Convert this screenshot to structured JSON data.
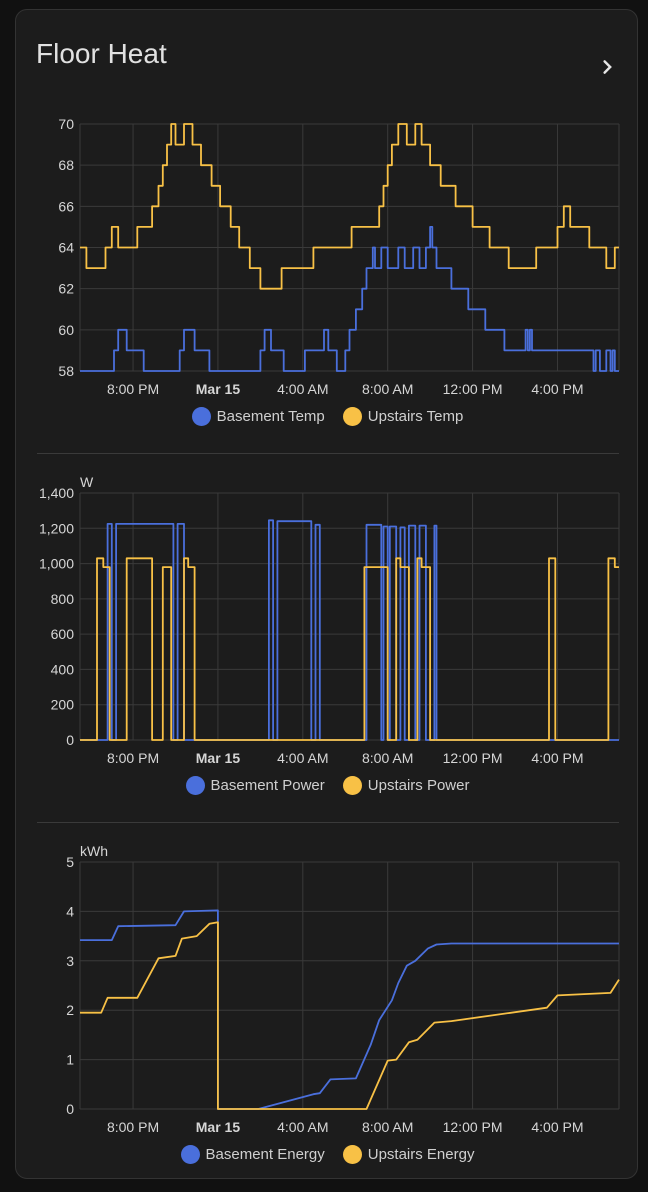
{
  "card": {
    "title": "Floor Heat",
    "open_icon": "chevron-right-icon"
  },
  "colors": {
    "blue": "#4a6fdc",
    "yellow": "#f8c146",
    "grid": "#3a3a3a",
    "tick": "#d6d6d6"
  },
  "x_ticks": [
    "8:00 PM",
    "Mar 15",
    "4:00 AM",
    "8:00 AM",
    "12:00 PM",
    "4:00 PM"
  ],
  "charts": [
    {
      "unit": "",
      "y_ticks": [
        "58",
        "60",
        "62",
        "64",
        "66",
        "68",
        "70"
      ],
      "legend": [
        "Basement Temp",
        "Upstairs Temp"
      ]
    },
    {
      "unit": "W",
      "y_ticks": [
        "0",
        "200",
        "400",
        "600",
        "800",
        "1,000",
        "1,200",
        "1,400"
      ],
      "legend": [
        "Basement Power",
        "Upstairs Power"
      ]
    },
    {
      "unit": "kWh",
      "y_ticks": [
        "0",
        "1",
        "2",
        "3",
        "4",
        "5"
      ],
      "legend": [
        "Basement Energy",
        "Upstairs Energy"
      ]
    }
  ],
  "chart_data": [
    {
      "type": "line",
      "x_unit": "hours",
      "ylim": [
        58,
        70
      ],
      "series": [
        {
          "name": "Basement Temp",
          "color": "#4a6fdc",
          "x": [
            17.5,
            19.1,
            19.1,
            19.3,
            19.3,
            19.7,
            19.7,
            20.5,
            20.5,
            22.2,
            22.2,
            22.4,
            22.4,
            22.9,
            22.9,
            23.6,
            23.6,
            23.8,
            23.8,
            26.0,
            26.0,
            26.2,
            26.2,
            26.5,
            26.5,
            27.1,
            27.1,
            28.1,
            28.1,
            29.0,
            29.0,
            29.2,
            29.2,
            29.6,
            29.6,
            30.0,
            30.0,
            30.2,
            30.2,
            30.5,
            30.5,
            30.8,
            30.8,
            31.0,
            31.0,
            31.3,
            31.3,
            31.4,
            31.4,
            31.7,
            31.7,
            32.0,
            32.0,
            32.5,
            32.5,
            32.8,
            32.8,
            33.2,
            33.2,
            33.5,
            33.5,
            33.8,
            33.8,
            34.0,
            34.0,
            34.1,
            34.1,
            34.3,
            34.3,
            35.0,
            35.0,
            35.8,
            35.8,
            36.6,
            36.6,
            37.5,
            37.5,
            38.5,
            38.5,
            38.6,
            38.6,
            38.7,
            38.7,
            38.8,
            38.8,
            41.7,
            41.7,
            41.8,
            41.8,
            42.0,
            42.0,
            42.3,
            42.3,
            42.5,
            42.5,
            42.6,
            42.6,
            42.7,
            42.7,
            42.9
          ],
          "y": [
            58,
            58,
            59,
            59,
            60,
            60,
            59,
            59,
            58,
            58,
            59,
            59,
            60,
            60,
            59,
            59,
            58,
            58,
            58,
            58,
            59,
            59,
            60,
            60,
            59,
            59,
            58,
            58,
            59,
            59,
            60,
            60,
            59,
            59,
            58,
            58,
            59,
            59,
            60,
            60,
            61,
            61,
            62,
            62,
            63,
            63,
            64,
            64,
            63,
            63,
            64,
            64,
            63,
            63,
            64,
            64,
            63,
            63,
            64,
            64,
            63,
            63,
            64,
            64,
            65,
            65,
            64,
            64,
            63,
            63,
            62,
            62,
            61,
            61,
            60,
            60,
            59,
            59,
            60,
            60,
            59,
            59,
            60,
            60,
            59,
            59,
            58,
            58,
            59,
            59,
            58,
            58,
            59,
            59,
            58,
            58,
            59,
            59,
            58,
            58
          ]
        },
        {
          "name": "Upstairs Temp",
          "color": "#f8c146",
          "x": [
            17.5,
            17.8,
            17.8,
            18.7,
            18.7,
            19.0,
            19.0,
            19.3,
            19.3,
            20.2,
            20.2,
            20.9,
            20.9,
            21.2,
            21.2,
            21.4,
            21.4,
            21.6,
            21.6,
            21.8,
            21.8,
            22.0,
            22.0,
            22.4,
            22.4,
            22.8,
            22.8,
            23.2,
            23.2,
            23.7,
            23.7,
            24.1,
            24.1,
            24.6,
            24.6,
            25.0,
            25.0,
            25.5,
            25.5,
            26.0,
            26.0,
            27.0,
            27.0,
            28.5,
            28.5,
            30.3,
            30.3,
            31.6,
            31.6,
            31.8,
            31.8,
            32.0,
            32.0,
            32.2,
            32.2,
            32.5,
            32.5,
            32.9,
            32.9,
            33.3,
            33.3,
            33.6,
            33.6,
            34.0,
            34.0,
            34.5,
            34.5,
            35.2,
            35.2,
            36.0,
            36.0,
            36.8,
            36.8,
            37.7,
            37.7,
            39.0,
            39.0,
            40.0,
            40.0,
            40.3,
            40.3,
            40.6,
            40.6,
            41.5,
            41.5,
            42.3,
            42.3,
            42.7,
            42.7,
            42.9
          ],
          "y": [
            64,
            64,
            63,
            63,
            64,
            64,
            65,
            65,
            64,
            64,
            65,
            65,
            66,
            66,
            67,
            67,
            68,
            68,
            69,
            69,
            70,
            70,
            69,
            69,
            70,
            70,
            69,
            69,
            68,
            68,
            67,
            67,
            66,
            66,
            65,
            65,
            64,
            64,
            63,
            63,
            62,
            62,
            63,
            63,
            64,
            64,
            65,
            65,
            66,
            66,
            67,
            67,
            68,
            68,
            69,
            69,
            70,
            70,
            69,
            69,
            70,
            70,
            69,
            69,
            68,
            68,
            67,
            67,
            66,
            66,
            65,
            65,
            64,
            64,
            63,
            63,
            64,
            64,
            65,
            65,
            66,
            66,
            65,
            65,
            64,
            64,
            63,
            63,
            64,
            64
          ]
        }
      ]
    },
    {
      "type": "line",
      "x_unit": "hours",
      "ylabel": "W",
      "ylim": [
        0,
        1400
      ],
      "series": [
        {
          "name": "Basement Power",
          "color": "#4a6fdc",
          "x": [
            17.5,
            18.8,
            18.8,
            19.0,
            19.0,
            19.2,
            19.2,
            21.9,
            21.9,
            22.1,
            22.1,
            22.4,
            22.4,
            26.4,
            26.4,
            26.6,
            26.6,
            26.8,
            26.8,
            28.4,
            28.4,
            28.6,
            28.6,
            28.8,
            28.8,
            31.0,
            31.0,
            31.7,
            31.7,
            31.8,
            31.8,
            32.0,
            32.0,
            32.1,
            32.1,
            32.4,
            32.4,
            32.6,
            32.6,
            32.8,
            32.8,
            33.0,
            33.0,
            33.3,
            33.3,
            33.5,
            33.5,
            33.8,
            33.8,
            34.0,
            34.0,
            34.2,
            34.2,
            34.3,
            34.3,
            42.9
          ],
          "y": [
            0,
            0,
            1225,
            1225,
            0,
            0,
            1225,
            1225,
            0,
            0,
            1225,
            1225,
            0,
            0,
            1245,
            1245,
            0,
            0,
            1240,
            1240,
            0,
            0,
            1220,
            1220,
            0,
            0,
            1220,
            1220,
            0,
            0,
            1210,
            1210,
            0,
            0,
            1210,
            1210,
            0,
            0,
            1205,
            1205,
            0,
            0,
            1215,
            1215,
            0,
            0,
            1215,
            1215,
            0,
            0,
            0,
            0,
            1215,
            1215,
            0,
            0
          ]
        },
        {
          "name": "Upstairs Power",
          "color": "#f8c146",
          "x": [
            17.5,
            18.3,
            18.3,
            18.6,
            18.6,
            18.9,
            18.9,
            19.7,
            19.7,
            20.9,
            20.9,
            21.4,
            21.4,
            21.8,
            21.8,
            22.4,
            22.4,
            22.6,
            22.6,
            22.9,
            22.9,
            30.9,
            30.9,
            32.0,
            32.0,
            32.4,
            32.4,
            32.6,
            32.6,
            33.0,
            33.0,
            33.4,
            33.4,
            33.6,
            33.6,
            34.0,
            34.0,
            34.2,
            34.2,
            39.6,
            39.6,
            39.9,
            39.9,
            42.4,
            42.4,
            42.7,
            42.7,
            42.9
          ],
          "y": [
            0,
            0,
            1030,
            1030,
            980,
            980,
            0,
            0,
            1030,
            1030,
            0,
            0,
            980,
            980,
            0,
            0,
            1030,
            1030,
            980,
            980,
            0,
            0,
            980,
            980,
            0,
            0,
            1030,
            1030,
            980,
            980,
            0,
            0,
            1030,
            1030,
            980,
            980,
            0,
            0,
            0,
            0,
            1030,
            1030,
            0,
            0,
            1030,
            1030,
            980,
            980
          ]
        }
      ]
    },
    {
      "type": "line",
      "x_unit": "hours",
      "ylabel": "kWh",
      "ylim": [
        0,
        5
      ],
      "series": [
        {
          "name": "Basement Energy",
          "color": "#4a6fdc",
          "x": [
            17.5,
            19.0,
            19.3,
            22.0,
            22.4,
            24.0,
            24.0,
            24.0,
            25.9,
            28.5,
            28.8,
            29.3,
            30.5,
            31.2,
            31.6,
            32.2,
            32.5,
            32.9,
            33.3,
            33.9,
            34.3,
            35.0,
            42.9
          ],
          "y": [
            3.42,
            3.42,
            3.7,
            3.72,
            4.0,
            4.02,
            4.02,
            0.0,
            0.0,
            0.3,
            0.32,
            0.6,
            0.62,
            1.3,
            1.8,
            2.2,
            2.55,
            2.9,
            3.0,
            3.25,
            3.33,
            3.35,
            3.35
          ]
        },
        {
          "name": "Upstairs Energy",
          "color": "#f8c146",
          "x": [
            17.5,
            18.5,
            18.8,
            20.2,
            21.2,
            22.0,
            22.3,
            23.0,
            23.6,
            24.0,
            24.0,
            26.0,
            29.0,
            31.0,
            32.0,
            32.4,
            33.0,
            33.4,
            34.2,
            35.0,
            39.5,
            40.0,
            42.5,
            42.9
          ],
          "y": [
            1.95,
            1.95,
            2.25,
            2.25,
            3.05,
            3.1,
            3.45,
            3.5,
            3.75,
            3.78,
            0.0,
            0.0,
            0.0,
            0.0,
            0.98,
            1.0,
            1.35,
            1.4,
            1.75,
            1.78,
            2.05,
            2.3,
            2.35,
            2.62
          ]
        }
      ]
    }
  ]
}
